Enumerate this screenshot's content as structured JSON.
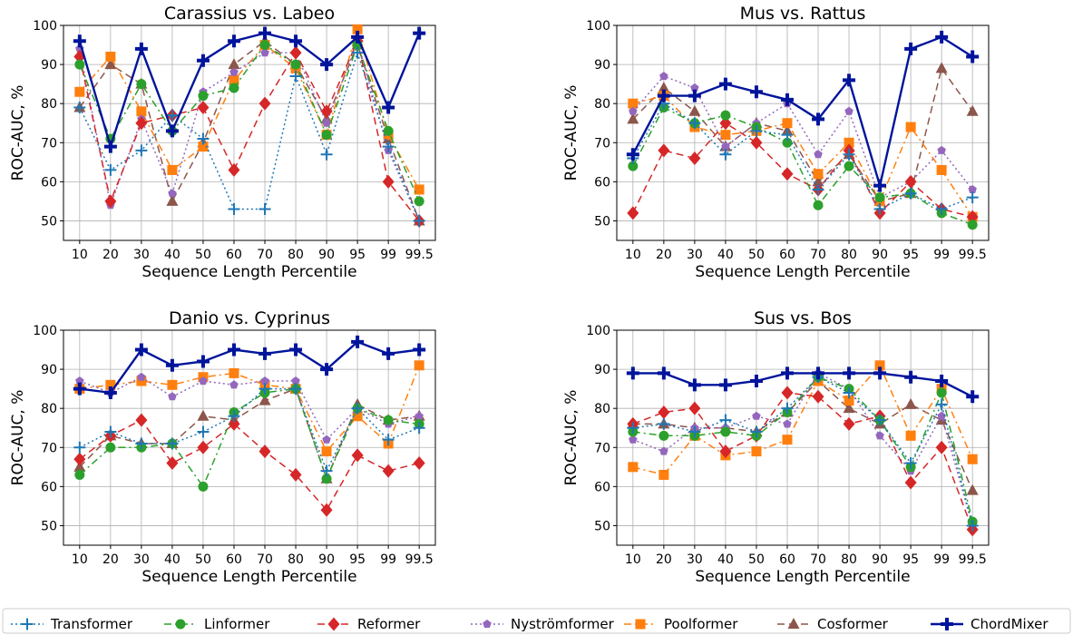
{
  "chart_data": [
    {
      "type": "line",
      "title": "Carassius vs. Labeo",
      "xlabel": "Sequence Length Percentile",
      "ylabel": "ROC-AUC, %",
      "categories": [
        "10",
        "20",
        "30",
        "40",
        "50",
        "60",
        "70",
        "80",
        "90",
        "95",
        "99",
        "99.5"
      ],
      "ylim": [
        45,
        100
      ],
      "yticks": [
        50,
        60,
        70,
        80,
        90,
        100
      ],
      "grid": true,
      "series": [
        {
          "name": "Transformer",
          "values": [
            79,
            63,
            68,
            77,
            71,
            53,
            53,
            87,
            67,
            93,
            69,
            50
          ]
        },
        {
          "name": "Linformer",
          "values": [
            90,
            71,
            85,
            73,
            82,
            84,
            95,
            90,
            72,
            95,
            73,
            55
          ]
        },
        {
          "name": "Reformer",
          "values": [
            92,
            55,
            75,
            77,
            79,
            63,
            80,
            93,
            78,
            96,
            60,
            50
          ]
        },
        {
          "name": "Nyströmformer",
          "values": [
            94,
            54,
            76,
            57,
            83,
            88,
            93,
            93,
            75,
            96,
            68,
            50
          ]
        },
        {
          "name": "Poolformer",
          "values": [
            83,
            92,
            78,
            63,
            69,
            86,
            95,
            89,
            72,
            99,
            72,
            58
          ]
        },
        {
          "name": "Cosformer",
          "values": [
            79,
            90,
            85,
            55,
            70,
            90,
            96,
            90,
            76,
            95,
            71,
            50
          ]
        },
        {
          "name": "ChordMixer",
          "values": [
            96,
            69,
            94,
            73,
            91,
            96,
            98,
            96,
            90,
            97,
            79,
            98
          ]
        }
      ]
    },
    {
      "type": "line",
      "title": "Mus vs. Rattus",
      "xlabel": "Sequence Length Percentile",
      "ylabel": "ROC-AUC, %",
      "categories": [
        "10",
        "20",
        "30",
        "40",
        "50",
        "60",
        "70",
        "80",
        "90",
        "95",
        "99",
        "99.5"
      ],
      "ylim": [
        45,
        100
      ],
      "yticks": [
        50,
        60,
        70,
        80,
        90,
        100
      ],
      "grid": true,
      "series": [
        {
          "name": "Transformer",
          "values": [
            66,
            80,
            75,
            67,
            73,
            72,
            58,
            67,
            53,
            57,
            53,
            56
          ]
        },
        {
          "name": "Linformer",
          "values": [
            64,
            79,
            75,
            77,
            74,
            70,
            54,
            64,
            56,
            57,
            52,
            49
          ]
        },
        {
          "name": "Reformer",
          "values": [
            52,
            68,
            66,
            75,
            70,
            62,
            58,
            68,
            52,
            60,
            53,
            51
          ]
        },
        {
          "name": "Nyströmformer",
          "values": [
            78,
            87,
            84,
            69,
            75,
            80,
            67,
            78,
            56,
            60,
            68,
            58
          ]
        },
        {
          "name": "Poolformer",
          "values": [
            80,
            82,
            74,
            72,
            73,
            75,
            62,
            70,
            55,
            74,
            63,
            51
          ]
        },
        {
          "name": "Cosformer",
          "values": [
            76,
            84,
            78,
            69,
            75,
            73,
            60,
            67,
            55,
            57,
            89,
            78
          ]
        },
        {
          "name": "ChordMixer",
          "values": [
            67,
            82,
            82,
            85,
            83,
            81,
            76,
            86,
            59,
            94,
            97,
            92
          ]
        }
      ]
    },
    {
      "type": "line",
      "title": "Danio vs. Cyprinus",
      "xlabel": "Sequence Length Percentile",
      "ylabel": "ROC-AUC, %",
      "categories": [
        "10",
        "20",
        "30",
        "40",
        "50",
        "60",
        "70",
        "80",
        "90",
        "95",
        "99",
        "99.5"
      ],
      "ylim": [
        45,
        100
      ],
      "yticks": [
        50,
        60,
        70,
        80,
        90,
        100
      ],
      "grid": true,
      "series": [
        {
          "name": "Transformer",
          "values": [
            70,
            74,
            71,
            71,
            74,
            78,
            85,
            85,
            64,
            80,
            72,
            75
          ]
        },
        {
          "name": "Linformer",
          "values": [
            63,
            70,
            70,
            71,
            60,
            79,
            84,
            85,
            62,
            80,
            77,
            76
          ]
        },
        {
          "name": "Reformer",
          "values": [
            67,
            73,
            77,
            66,
            70,
            76,
            69,
            63,
            54,
            68,
            64,
            66
          ]
        },
        {
          "name": "Nyströmformer",
          "values": [
            87,
            84,
            88,
            83,
            87,
            86,
            87,
            87,
            72,
            80,
            76,
            78
          ]
        },
        {
          "name": "Poolformer",
          "values": [
            85,
            86,
            87,
            86,
            88,
            89,
            86,
            85,
            69,
            78,
            71,
            91
          ]
        },
        {
          "name": "Cosformer",
          "values": [
            65,
            73,
            71,
            71,
            78,
            77,
            82,
            85,
            62,
            81,
            77,
            78
          ]
        },
        {
          "name": "ChordMixer",
          "values": [
            85,
            84,
            95,
            91,
            92,
            95,
            94,
            95,
            90,
            97,
            94,
            95
          ]
        }
      ]
    },
    {
      "type": "line",
      "title": "Sus vs. Bos",
      "xlabel": "Sequence Length Percentile",
      "ylabel": "ROC-AUC, %",
      "categories": [
        "10",
        "20",
        "30",
        "40",
        "50",
        "60",
        "70",
        "80",
        "90",
        "95",
        "99",
        "99.5"
      ],
      "ylim": [
        45,
        100
      ],
      "yticks": [
        50,
        60,
        70,
        80,
        90,
        100
      ],
      "grid": true,
      "series": [
        {
          "name": "Transformer",
          "values": [
            75,
            76,
            74,
            77,
            74,
            80,
            88,
            84,
            77,
            66,
            81,
            50
          ]
        },
        {
          "name": "Linformer",
          "values": [
            74,
            73,
            73,
            74,
            73,
            79,
            88,
            85,
            77,
            65,
            84,
            51
          ]
        },
        {
          "name": "Reformer",
          "values": [
            76,
            79,
            80,
            69,
            73,
            84,
            83,
            76,
            78,
            61,
            70,
            49
          ]
        },
        {
          "name": "Nyströmformer",
          "values": [
            72,
            69,
            75,
            75,
            78,
            76,
            89,
            85,
            73,
            64,
            78,
            50
          ]
        },
        {
          "name": "Poolformer",
          "values": [
            65,
            63,
            73,
            68,
            69,
            72,
            87,
            82,
            91,
            73,
            85,
            67
          ]
        },
        {
          "name": "Cosformer",
          "values": [
            76,
            76,
            75,
            75,
            74,
            79,
            87,
            80,
            76,
            81,
            77,
            59
          ]
        },
        {
          "name": "ChordMixer",
          "values": [
            89,
            89,
            86,
            86,
            87,
            89,
            89,
            89,
            89,
            88,
            87,
            83
          ]
        }
      ]
    }
  ],
  "legend": {
    "placement": "bottom",
    "entries": [
      {
        "name": "Transformer",
        "color": "#1f77b4",
        "marker": "plus",
        "dash": "dotted"
      },
      {
        "name": "Linformer",
        "color": "#2ca02c",
        "marker": "circle",
        "dash": "dashdot"
      },
      {
        "name": "Reformer",
        "color": "#d62728",
        "marker": "diamond",
        "dash": "dashed"
      },
      {
        "name": "Nyströmformer",
        "color": "#9467bd",
        "marker": "pentagon",
        "dash": "dotted"
      },
      {
        "name": "Poolformer",
        "color": "#ff7f0e",
        "marker": "square",
        "dash": "dashdot"
      },
      {
        "name": "Cosformer",
        "color": "#8c564b",
        "marker": "triangle",
        "dash": "dashed"
      },
      {
        "name": "ChordMixer",
        "color": "#00149b",
        "marker": "plus-bold",
        "dash": "solid"
      }
    ]
  }
}
